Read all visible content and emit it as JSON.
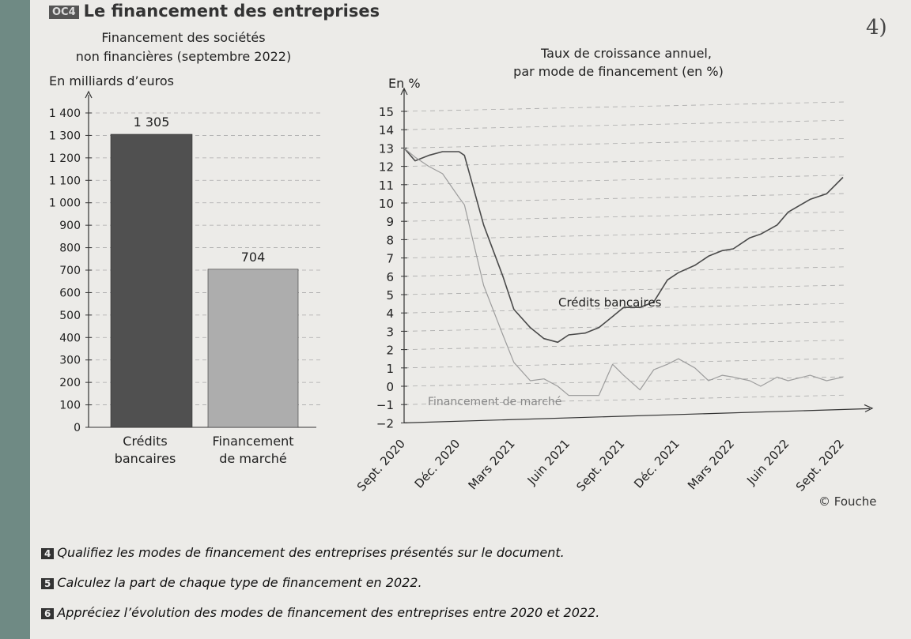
{
  "document": {
    "badge": "OC4",
    "title": "Le financement des entreprises",
    "handwritten_note": "4)",
    "credit": "© Fouche",
    "questions": [
      {
        "num": "4",
        "text": "Qualifiez les modes de financement des entreprises présentés sur le document."
      },
      {
        "num": "5",
        "text": "Calculez la part de chaque type de financement en 2022."
      },
      {
        "num": "6",
        "text": "Appréciez l’évolution des modes de financement des entreprises entre 2020 et 2022."
      }
    ]
  },
  "chart_data": [
    {
      "type": "bar",
      "title": "Financement des sociétés non financières (septembre 2022)",
      "title_lines": [
        "Financement des sociétés",
        "non financières (septembre 2022)"
      ],
      "ylabel": "En milliards d’euros",
      "categories": [
        "Crédits bancaires",
        "Financement de marché"
      ],
      "category_lines": [
        [
          "Crédits",
          "bancaires"
        ],
        [
          "Financement",
          "de marché"
        ]
      ],
      "values": [
        1305,
        704
      ],
      "value_labels": [
        "1 305",
        "704"
      ],
      "ylim": [
        0,
        1400
      ],
      "yticks": [
        0,
        100,
        200,
        300,
        400,
        500,
        600,
        700,
        800,
        900,
        1000,
        1100,
        1200,
        1300,
        1400
      ],
      "ytick_labels": [
        "0",
        "100",
        "200",
        "300",
        "400",
        "500",
        "600",
        "700",
        "800",
        "900",
        "1 000",
        "1 100",
        "1 200",
        "1 300",
        "1 400"
      ],
      "colors": [
        "#505050",
        "#adadad"
      ]
    },
    {
      "type": "line",
      "title": "Taux de croissance annuel, par mode de financement (en %)",
      "title_lines": [
        "Taux de croissance annuel,",
        "par mode de financement (en %)"
      ],
      "ylabel": "En %",
      "ylim": [
        -2,
        15
      ],
      "yticks": [
        -2,
        -1,
        0,
        1,
        2,
        3,
        4,
        5,
        6,
        7,
        8,
        9,
        10,
        11,
        12,
        13,
        14,
        15
      ],
      "x_tick_labels": [
        "Sept. 2020",
        "Déc. 2020",
        "Mars 2021",
        "Juin 2021",
        "Sept. 2021",
        "Déc. 2021",
        "Mars 2022",
        "Juin 2022",
        "Sept. 2022"
      ],
      "x": [
        0,
        0.2,
        0.45,
        0.7,
        1.0,
        1.1,
        1.45,
        1.8,
        2.0,
        2.3,
        2.55,
        2.8,
        3.0,
        3.3,
        3.55,
        3.8,
        4.0,
        4.3,
        4.55,
        4.8,
        5.0,
        5.3,
        5.55,
        5.8,
        6.0,
        6.3,
        6.5,
        6.8,
        7.0,
        7.4,
        7.7,
        8.0
      ],
      "series": [
        {
          "name": "Crédits bancaires",
          "color": "#4a4a4a",
          "values": [
            13.0,
            12.3,
            12.6,
            12.8,
            12.8,
            12.6,
            8.8,
            6.0,
            4.2,
            3.2,
            2.6,
            2.4,
            2.8,
            2.9,
            3.2,
            3.8,
            4.3,
            4.3,
            4.6,
            5.8,
            6.2,
            6.6,
            7.1,
            7.4,
            7.5,
            8.1,
            8.3,
            8.8,
            9.5,
            10.2,
            10.5,
            11.4
          ]
        },
        {
          "name": "Financement de marché",
          "color": "#9d9d9d",
          "values": [
            13.0,
            12.5,
            12.0,
            11.6,
            10.3,
            9.9,
            5.5,
            2.8,
            1.3,
            0.3,
            0.4,
            0.0,
            -0.5,
            -0.5,
            -0.5,
            1.2,
            0.6,
            -0.2,
            0.9,
            1.2,
            1.5,
            1.0,
            0.3,
            0.6,
            0.5,
            0.3,
            0.0,
            0.5,
            0.3,
            0.6,
            0.3,
            0.5
          ]
        }
      ],
      "series_labels": {
        "credits": "Crédits bancaires",
        "marche": "Financement de marché"
      }
    }
  ]
}
